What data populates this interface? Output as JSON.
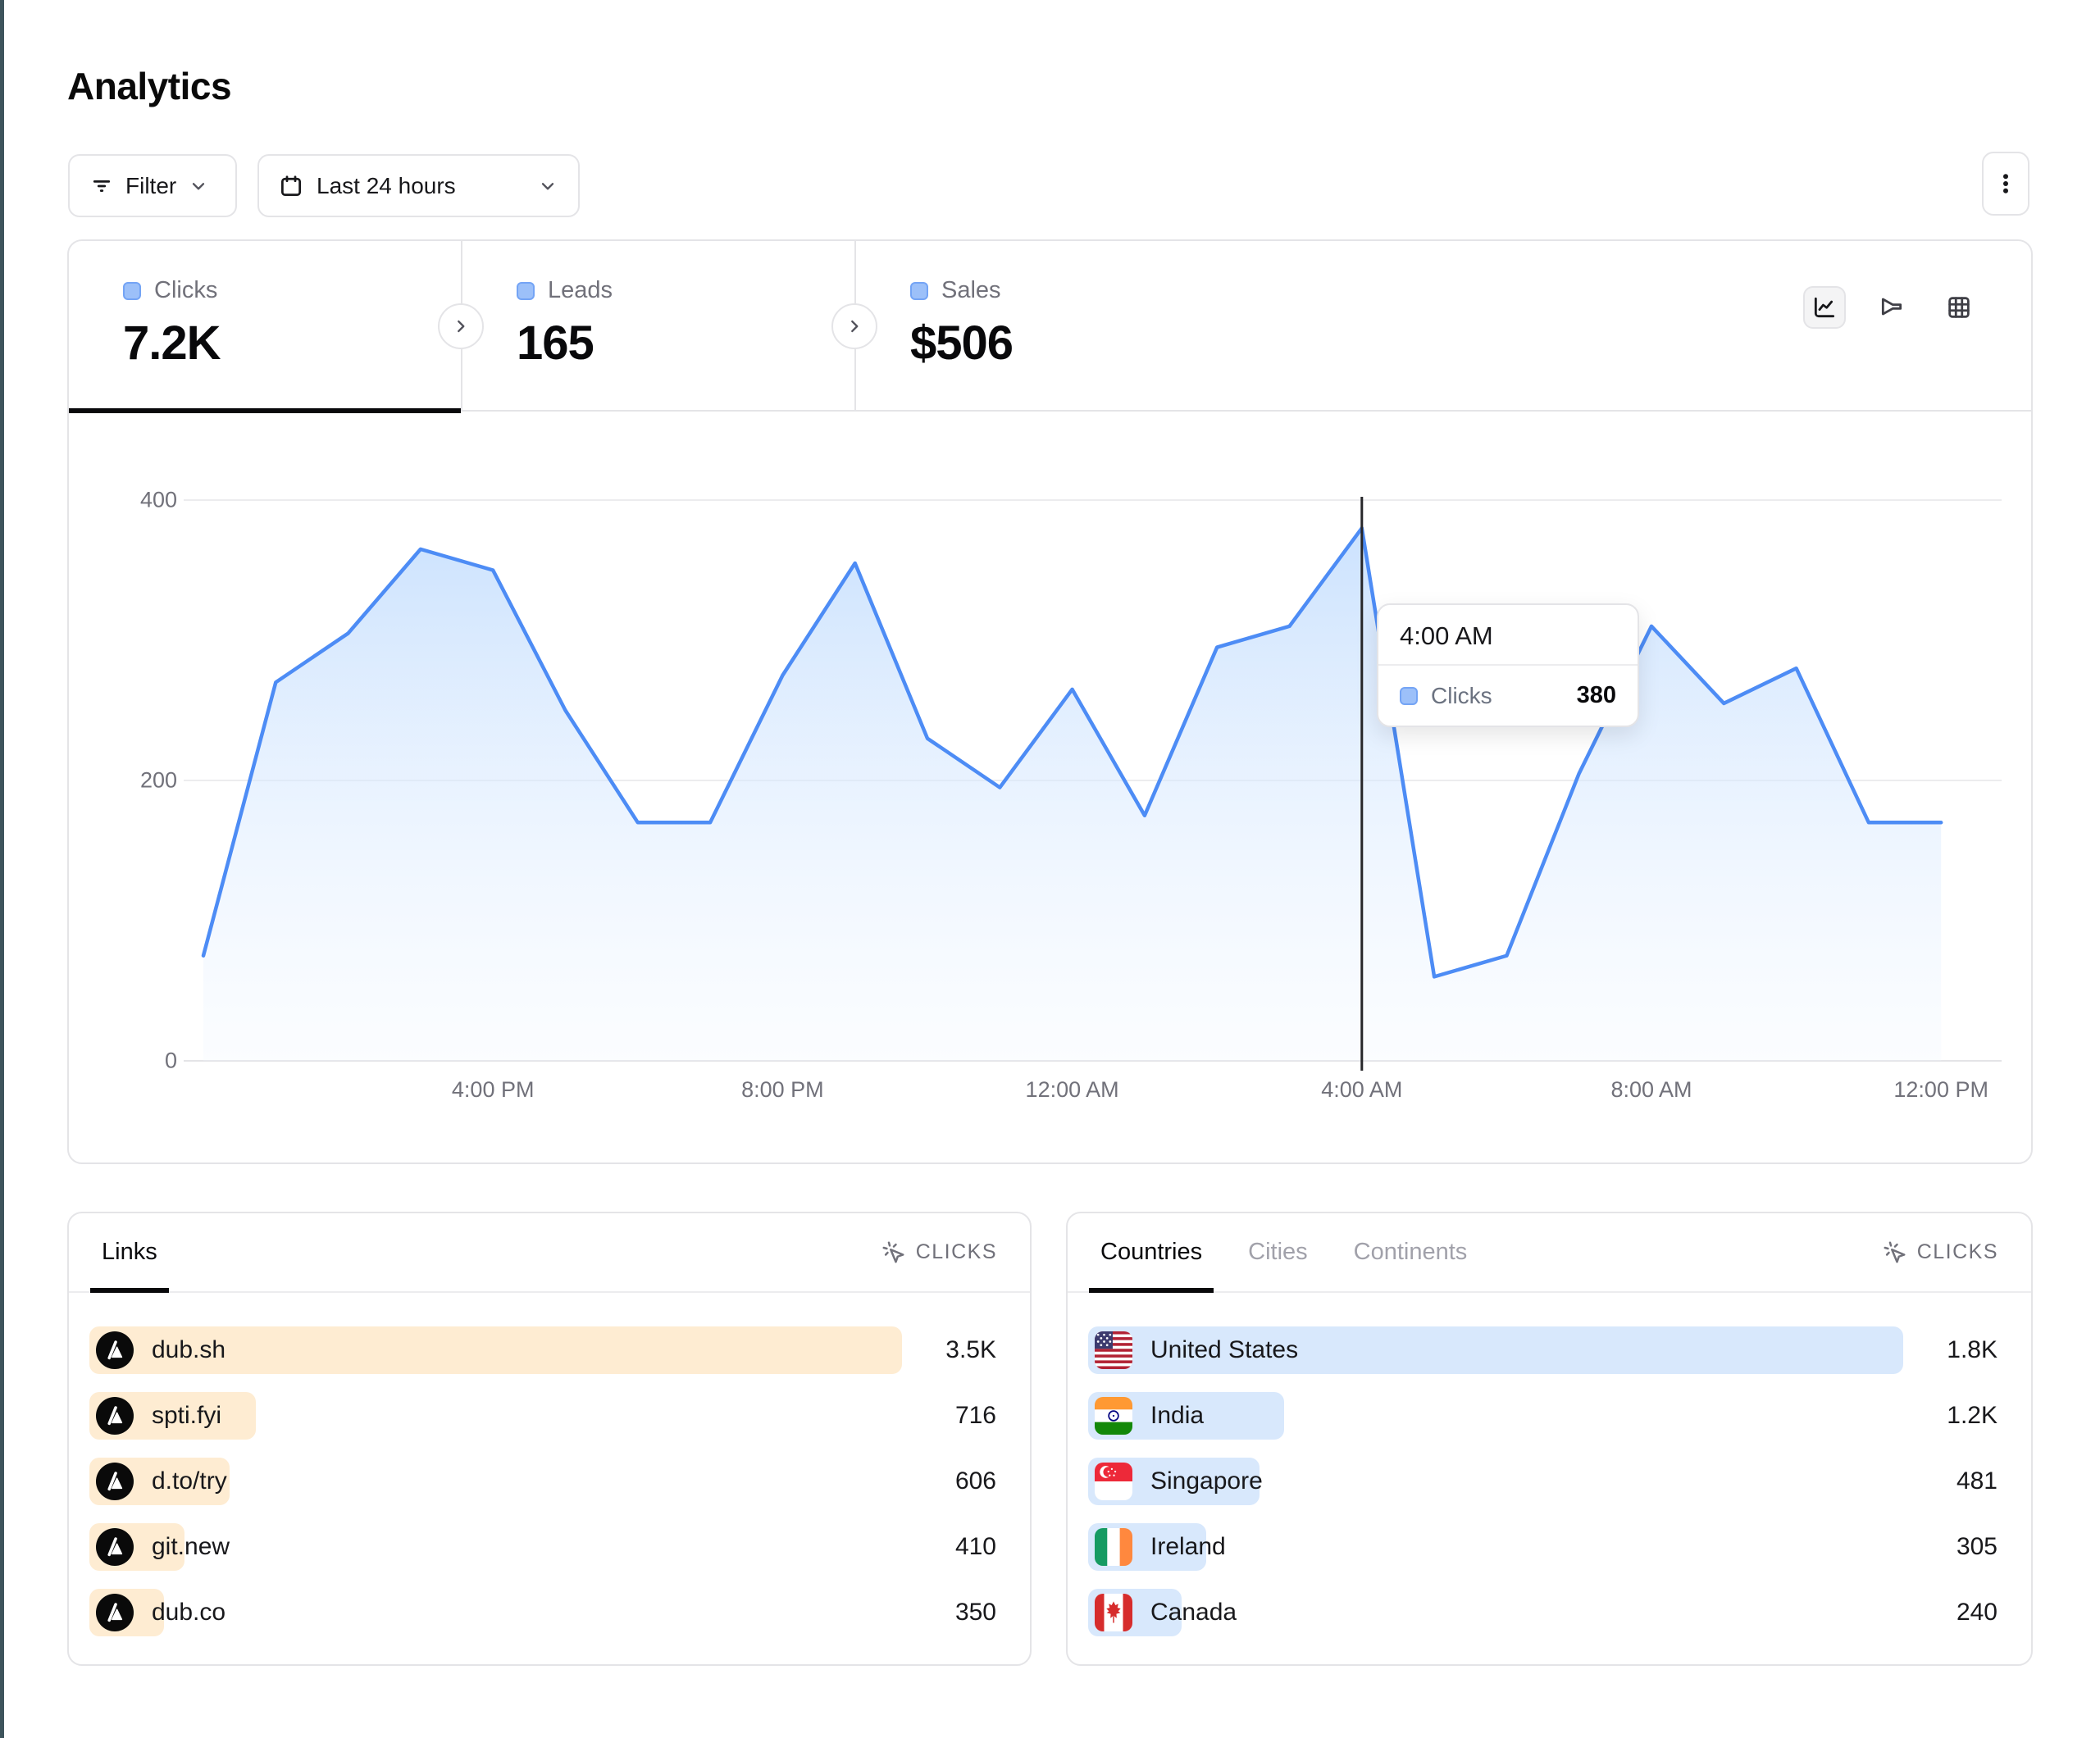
{
  "page": {
    "title": "Analytics"
  },
  "toolbar": {
    "filter_label": "Filter",
    "date_range_label": "Last 24 hours",
    "icons": [
      "filter-icon",
      "calendar-icon",
      "chevron-down-icon",
      "kebab-menu-icon"
    ]
  },
  "stats": {
    "tabs": [
      {
        "label": "Clicks",
        "value": "7.2K",
        "active": true
      },
      {
        "label": "Leads",
        "value": "165",
        "active": false
      },
      {
        "label": "Sales",
        "value": "$506",
        "active": false
      }
    ],
    "swatch_color": "#9cc0f9"
  },
  "view_toggles": [
    "line-chart-icon",
    "funnel-chart-icon",
    "table-grid-icon"
  ],
  "chart_data": {
    "type": "area",
    "title": "Clicks over last 24 hours",
    "series_name": "Clicks",
    "x": [
      "12:00 PM",
      "1:00 PM",
      "2:00 PM",
      "3:00 PM",
      "4:00 PM",
      "5:00 PM",
      "6:00 PM",
      "7:00 PM",
      "8:00 PM",
      "9:00 PM",
      "10:00 PM",
      "11:00 PM",
      "12:00 AM",
      "1:00 AM",
      "2:00 AM",
      "3:00 AM",
      "4:00 AM",
      "5:00 AM",
      "6:00 AM",
      "7:00 AM",
      "8:00 AM",
      "9:00 AM",
      "10:00 AM",
      "11:00 AM",
      "12:00 PM"
    ],
    "values": [
      75,
      270,
      305,
      365,
      350,
      250,
      170,
      170,
      275,
      355,
      230,
      195,
      265,
      175,
      295,
      310,
      380,
      60,
      75,
      205,
      310,
      255,
      280,
      170,
      170
    ],
    "x_axis_ticks": [
      "4:00 PM",
      "8:00 PM",
      "12:00 AM",
      "4:00 AM",
      "8:00 AM",
      "12:00 PM"
    ],
    "x_axis_tick_indices": [
      4,
      8,
      12,
      16,
      20,
      24
    ],
    "y_ticks": [
      0,
      200,
      400
    ],
    "ylim": [
      0,
      400
    ],
    "grid": "horizontal",
    "line_color": "#4d8cf5",
    "fill_color": "#dbeafe",
    "cursor_index": 16
  },
  "tooltip": {
    "title": "4:00 AM",
    "series": "Clicks",
    "value": "380"
  },
  "links_panel": {
    "tab_label": "Links",
    "metric_label": "CLICKS",
    "bar_color": "#feecd2",
    "rows": [
      {
        "label": "dub.sh",
        "value": "3.5K",
        "bar_pct": 100
      },
      {
        "label": "spti.fyi",
        "value": "716",
        "bar_pct": 20.5
      },
      {
        "label": "d.to/try",
        "value": "606",
        "bar_pct": 17.3
      },
      {
        "label": "git.new",
        "value": "410",
        "bar_pct": 11.7
      },
      {
        "label": "dub.co",
        "value": "350",
        "bar_pct": 9.2
      }
    ]
  },
  "countries_panel": {
    "tabs": [
      {
        "label": "Countries",
        "active": true
      },
      {
        "label": "Cities",
        "active": false
      },
      {
        "label": "Continents",
        "active": false
      }
    ],
    "metric_label": "CLICKS",
    "bar_color": "#d8e8fc",
    "rows": [
      {
        "label": "United States",
        "value": "1.8K",
        "flag": "us",
        "bar_pct": 100
      },
      {
        "label": "India",
        "value": "1.2K",
        "flag": "in",
        "bar_pct": 24
      },
      {
        "label": "Singapore",
        "value": "481",
        "flag": "sg",
        "bar_pct": 21
      },
      {
        "label": "Ireland",
        "value": "305",
        "flag": "ie",
        "bar_pct": 14.5
      },
      {
        "label": "Canada",
        "value": "240",
        "flag": "ca",
        "bar_pct": 11.5
      }
    ]
  },
  "colors": {
    "accent_blue": "#4d8cf5",
    "bar_orange": "#feecd2",
    "bar_blue": "#d8e8fc",
    "border": "#e4e4e7",
    "text_muted": "#71717a",
    "text_dark": "#09090b",
    "edge_strip": "#3e545c"
  }
}
